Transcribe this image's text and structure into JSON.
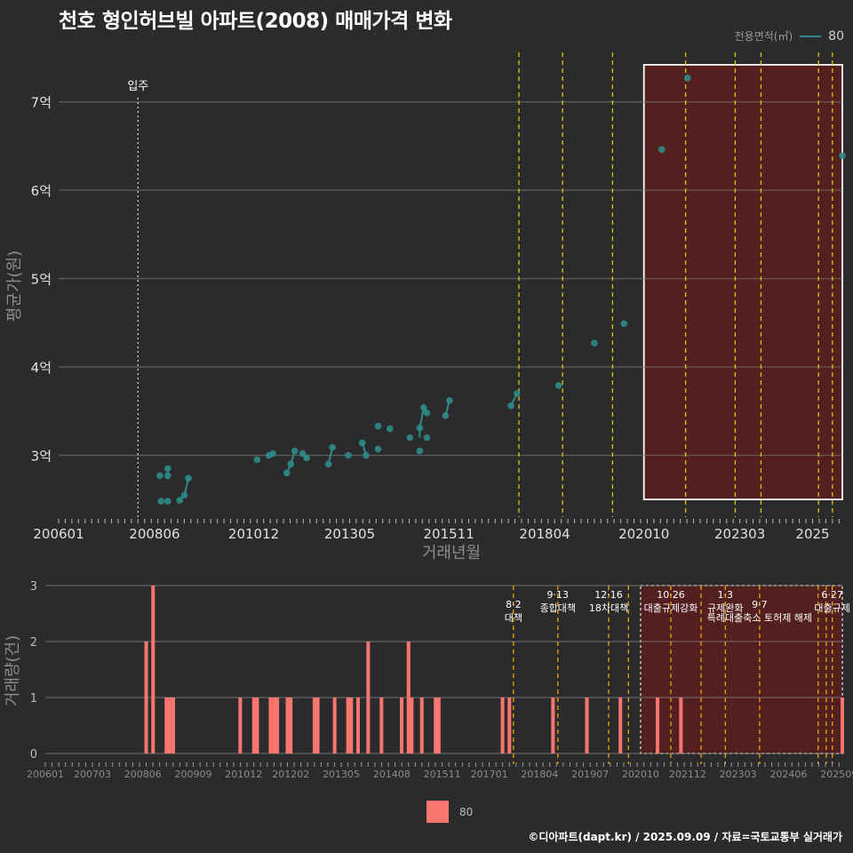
{
  "title": "천호 형인허브빌 아파트(2008) 매매가격 변화",
  "footer": "©디아파트(dapt.kr) / 2025.09.09 / 자료=국토교통부 실거래가",
  "colors": {
    "background": "#2b2b2d",
    "line": "#2e8b87",
    "bar": "#f8766d",
    "policy_line_top": "#d4c800",
    "policy_line_bottom": "#e5a800",
    "highlight_fill": "#5a1d1d"
  },
  "chart_data": [
    {
      "type": "line",
      "id": "price",
      "xlabel": "거래년월",
      "ylabel": "평균가(원)",
      "x_ticks": [
        "200601",
        "200806",
        "201012",
        "201305",
        "201511",
        "201804",
        "202010",
        "202303",
        "2025"
      ],
      "y_ticks": [
        "3억",
        "4억",
        "5억",
        "6억",
        "7억"
      ],
      "ylim": [
        2.3,
        7.6
      ],
      "xlim": [
        2006.0,
        2025.75
      ],
      "legend": {
        "title": "전용면적(㎡)",
        "entries": [
          "80"
        ]
      },
      "annotation": {
        "label": "입주",
        "x": 2008.0
      },
      "policy_lines": [
        2017.6,
        2018.7,
        2019.96,
        2021.8,
        2023.05,
        2023.7,
        2025.15,
        2025.5
      ],
      "highlight_range": [
        2020.75,
        2025.75
      ],
      "series": [
        {
          "name": "80",
          "points": [
            [
              2008.55,
              2.77
            ],
            [
              2008.75,
              2.77
            ],
            [
              2008.75,
              2.85
            ],
            [
              2008.58,
              2.48
            ],
            [
              2008.75,
              2.48
            ],
            [
              2009.05,
              2.49
            ],
            [
              2009.17,
              2.55
            ],
            [
              2009.27,
              2.74
            ],
            [
              2011.0,
              2.95
            ],
            [
              2011.3,
              3.0
            ],
            [
              2011.4,
              3.02
            ],
            [
              2011.75,
              2.8
            ],
            [
              2011.85,
              2.9
            ],
            [
              2011.95,
              3.05
            ],
            [
              2012.15,
              3.02
            ],
            [
              2012.25,
              2.97
            ],
            [
              2012.8,
              2.9
            ],
            [
              2012.9,
              3.09
            ],
            [
              2013.3,
              3.0
            ],
            [
              2013.65,
              3.14
            ],
            [
              2013.75,
              3.0
            ],
            [
              2014.05,
              3.33
            ],
            [
              2014.05,
              3.07
            ],
            [
              2014.35,
              3.3
            ],
            [
              2014.85,
              3.2
            ],
            [
              2015.1,
              3.31
            ],
            [
              2015.1,
              3.05
            ],
            [
              2015.2,
              3.54
            ],
            [
              2015.28,
              3.48
            ],
            [
              2015.28,
              3.2
            ],
            [
              2015.75,
              3.45
            ],
            [
              2015.85,
              3.62
            ],
            [
              2017.4,
              3.56
            ],
            [
              2017.55,
              3.7
            ],
            [
              2018.6,
              3.79
            ],
            [
              2019.5,
              4.27
            ],
            [
              2020.25,
              4.49
            ],
            [
              2021.2,
              6.46
            ],
            [
              2021.85,
              7.27
            ],
            [
              2025.75,
              6.39
            ]
          ],
          "segments": [
            [
              [
                2008.75,
                2.77
              ],
              [
                2008.75,
                2.85
              ]
            ],
            [
              [
                2009.05,
                2.49
              ],
              [
                2009.17,
                2.55
              ],
              [
                2009.27,
                2.74
              ]
            ],
            [
              [
                2011.3,
                3.0
              ],
              [
                2011.4,
                3.02
              ]
            ],
            [
              [
                2011.75,
                2.8
              ],
              [
                2011.85,
                2.9
              ],
              [
                2011.95,
                3.05
              ]
            ],
            [
              [
                2012.15,
                3.02
              ],
              [
                2012.25,
                2.97
              ]
            ],
            [
              [
                2012.8,
                2.9
              ],
              [
                2012.9,
                3.09
              ]
            ],
            [
              [
                2013.65,
                3.14
              ],
              [
                2013.75,
                3.0
              ]
            ],
            [
              [
                2015.1,
                3.31
              ],
              [
                2015.2,
                3.54
              ],
              [
                2015.28,
                3.48
              ]
            ],
            [
              [
                2015.1,
                3.31
              ],
              [
                2015.1,
                3.2
              ]
            ],
            [
              [
                2015.75,
                3.45
              ],
              [
                2015.85,
                3.62
              ]
            ],
            [
              [
                2017.4,
                3.56
              ],
              [
                2017.55,
                3.7
              ]
            ]
          ]
        }
      ]
    },
    {
      "type": "bar",
      "id": "volume",
      "ylabel": "거래량(건)",
      "x_ticks": [
        "200601",
        "200703",
        "200806",
        "200909",
        "201012",
        "201202",
        "201305",
        "201408",
        "201511",
        "201701",
        "201804",
        "201907",
        "202010",
        "202112",
        "202303",
        "202406",
        "202509"
      ],
      "y_ticks": [
        "0",
        "1",
        "2",
        "3"
      ],
      "ylim": [
        0,
        3
      ],
      "xlim": [
        2006.0,
        2025.75
      ],
      "legend": {
        "entries": [
          "80"
        ]
      },
      "highlight_range": [
        2020.75,
        2025.75
      ],
      "policy_lines": [
        2017.6,
        2018.7,
        2019.96,
        2020.45,
        2021.5,
        2022.25,
        2022.85,
        2023.7,
        2025.15,
        2025.35,
        2025.5
      ],
      "policy_labels": [
        {
          "date": "8·2",
          "text": "대책",
          "x": 2017.6,
          "row": 1
        },
        {
          "date": "9·13",
          "text": "종합대책",
          "x": 2018.7,
          "row": 0
        },
        {
          "date": "12·16",
          "text": "18차대책",
          "x": 2019.96,
          "row": 0
        },
        {
          "date": "10·26",
          "text": "대출규제강화",
          "x": 2021.5,
          "row": 0
        },
        {
          "date": "1·3",
          "text": "규제완화",
          "x": 2022.85,
          "row": 0
        },
        {
          "date": "9·7",
          "text": "특례대출축소 토허제 해제",
          "x": 2023.7,
          "row": 1
        },
        {
          "date": "6·27",
          "text": "대출규제",
          "x": 2025.5,
          "row": 0
        }
      ],
      "bars": [
        [
          2008.5,
          2
        ],
        [
          2008.67,
          3
        ],
        [
          2009.0,
          1
        ],
        [
          2009.08,
          1
        ],
        [
          2009.17,
          1
        ],
        [
          2010.83,
          1
        ],
        [
          2011.17,
          1
        ],
        [
          2011.25,
          1
        ],
        [
          2011.58,
          1
        ],
        [
          2011.67,
          1
        ],
        [
          2011.75,
          1
        ],
        [
          2012.0,
          1
        ],
        [
          2012.08,
          1
        ],
        [
          2012.67,
          1
        ],
        [
          2012.75,
          1
        ],
        [
          2013.17,
          1
        ],
        [
          2013.5,
          1
        ],
        [
          2013.58,
          1
        ],
        [
          2013.75,
          1
        ],
        [
          2014.0,
          2
        ],
        [
          2014.33,
          1
        ],
        [
          2014.83,
          1
        ],
        [
          2015.0,
          2
        ],
        [
          2015.08,
          1
        ],
        [
          2015.33,
          1
        ],
        [
          2015.67,
          1
        ],
        [
          2015.75,
          1
        ],
        [
          2017.33,
          1
        ],
        [
          2017.5,
          1
        ],
        [
          2018.58,
          1
        ],
        [
          2019.42,
          1
        ],
        [
          2020.25,
          1
        ],
        [
          2021.17,
          1
        ],
        [
          2021.75,
          1
        ],
        [
          2025.75,
          1
        ]
      ]
    }
  ]
}
